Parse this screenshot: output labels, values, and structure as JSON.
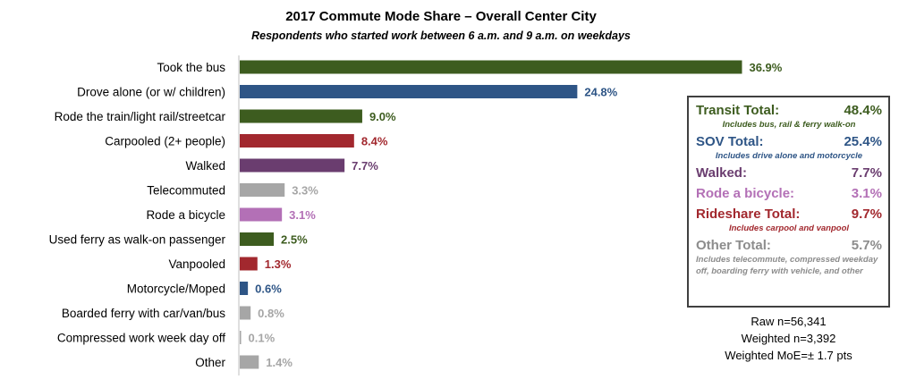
{
  "chart_data": {
    "type": "bar",
    "orientation": "horizontal",
    "title": "2017 Commute Mode Share – Overall Center City",
    "subtitle": "Respondents who started work between 6 a.m. and 9 a.m. on weekdays",
    "xlim": [
      0,
      37
    ],
    "grid": false,
    "categories": [
      "Took the bus",
      "Drove alone (or w/ children)",
      "Rode the train/light rail/streetcar",
      "Carpooled (2+ people)",
      "Walked",
      "Telecommuted",
      "Rode a bicycle",
      "Used ferry as walk-on passenger",
      "Vanpooled",
      "Motorcycle/Moped",
      "Boarded ferry with car/van/bus",
      "Compressed work week day off",
      "Other"
    ],
    "values": [
      36.9,
      24.8,
      9.0,
      8.4,
      7.7,
      3.3,
      3.1,
      2.5,
      1.3,
      0.6,
      0.8,
      0.1,
      1.4
    ],
    "value_labels": [
      "36.9%",
      "24.8%",
      "9.0%",
      "8.4%",
      "7.7%",
      "3.3%",
      "3.1%",
      "2.5%",
      "1.3%",
      "0.6%",
      "0.8%",
      "0.1%",
      "1.4%"
    ],
    "colors": [
      "#3d5c1f",
      "#2e5586",
      "#3d5c1f",
      "#a2282e",
      "#6a3d6f",
      "#a6a6a6",
      "#b370b6",
      "#3d5c1f",
      "#a2282e",
      "#2e5586",
      "#a6a6a6",
      "#a6a6a6",
      "#a6a6a6"
    ]
  },
  "summary_box": {
    "rows": [
      {
        "label": "Transit Total:",
        "value": "48.4%",
        "note": "Includes bus, rail & ferry walk-on",
        "color": "#3d5c1f"
      },
      {
        "label": "SOV Total:",
        "value": "25.4%",
        "note": "Includes drive alone and motorcycle",
        "color": "#2e5586"
      },
      {
        "label": "Walked:",
        "value": "7.7%",
        "note": "",
        "color": "#6a3d6f"
      },
      {
        "label": "Rode a bicycle:",
        "value": "3.1%",
        "note": "",
        "color": "#b370b6"
      },
      {
        "label": "Rideshare Total:",
        "value": "9.7%",
        "note": "Includes carpool and vanpool",
        "color": "#a2282e"
      },
      {
        "label": "Other Total:",
        "value": "5.7%",
        "note": "Includes telecommute, compressed weekday off, boarding ferry with vehicle, and other",
        "color": "#8c8c8c"
      }
    ]
  },
  "stats": {
    "raw": "Raw n=56,341",
    "weighted": "Weighted n=3,392",
    "moe": "Weighted MoE=± 1.7 pts"
  }
}
